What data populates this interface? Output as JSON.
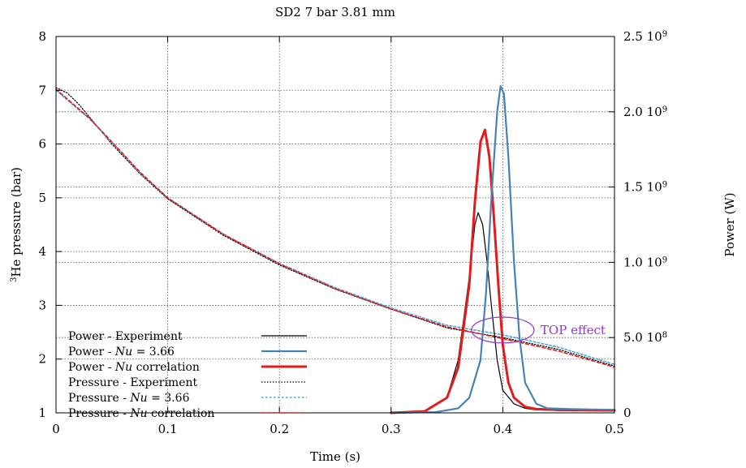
{
  "chart_data": {
    "type": "line",
    "title": "SD2 7 bar 3.81 mm",
    "xlabel": "Time (s)",
    "ylabel_left": {
      "sup": "3",
      "rest": "He pressure (bar)"
    },
    "ylabel_right": "Power (W)",
    "xlim": [
      0,
      0.5
    ],
    "ylim_left": [
      1,
      8
    ],
    "ylim_right": [
      0,
      2500000000
    ],
    "x_ticks": [
      {
        "v": 0,
        "label": "0"
      },
      {
        "v": 0.1,
        "label": "0.1"
      },
      {
        "v": 0.2,
        "label": "0.2"
      },
      {
        "v": 0.3,
        "label": "0.3"
      },
      {
        "v": 0.4,
        "label": "0.4"
      },
      {
        "v": 0.5,
        "label": "0.5"
      }
    ],
    "y_ticks_left": [
      {
        "v": 1,
        "label": "1"
      },
      {
        "v": 2,
        "label": "2"
      },
      {
        "v": 3,
        "label": "3"
      },
      {
        "v": 4,
        "label": "4"
      },
      {
        "v": 5,
        "label": "5"
      },
      {
        "v": 6,
        "label": "6"
      },
      {
        "v": 7,
        "label": "7"
      },
      {
        "v": 8,
        "label": "8"
      }
    ],
    "y_ticks_right": [
      {
        "v": 0,
        "mant": "0",
        "exp": ""
      },
      {
        "v": 500000000,
        "mant": "5.0 10",
        "exp": "8"
      },
      {
        "v": 1000000000,
        "mant": "1.0 10",
        "exp": "9"
      },
      {
        "v": 1500000000,
        "mant": "1.5 10",
        "exp": "9"
      },
      {
        "v": 2000000000,
        "mant": "2.0 10",
        "exp": "9"
      },
      {
        "v": 2500000000,
        "mant": "2.5 10",
        "exp": "9"
      }
    ],
    "grid": true,
    "legend_position": "bottom-left",
    "series": [
      {
        "name": "Power - Experiment",
        "legend_prefix": "Power - Experiment",
        "legend_italic": "",
        "legend_suffix": "",
        "axis": "right",
        "color": "#000000",
        "width": 1.2,
        "dash": "",
        "x": [
          0.3,
          0.33,
          0.35,
          0.36,
          0.37,
          0.375,
          0.378,
          0.382,
          0.386,
          0.39,
          0.395,
          0.4,
          0.41,
          0.42,
          0.43,
          0.45,
          0.5
        ],
        "y": [
          0,
          10000000,
          100000000,
          350000000,
          900000000,
          1250000000,
          1330000000,
          1250000000,
          1000000000,
          700000000,
          350000000,
          150000000,
          60000000,
          30000000,
          20000000,
          15000000,
          12000000
        ]
      },
      {
        "name": "Power - Nu = 3.66",
        "legend_prefix": "Power - ",
        "legend_italic": "Nu",
        "legend_suffix": " = 3.66",
        "axis": "right",
        "color": "#4682b4",
        "width": 2.2,
        "dash": "",
        "x": [
          0.3,
          0.34,
          0.36,
          0.37,
          0.38,
          0.385,
          0.39,
          0.395,
          0.398,
          0.401,
          0.405,
          0.41,
          0.415,
          0.42,
          0.43,
          0.44,
          0.46,
          0.5
        ],
        "y": [
          0,
          5000000,
          30000000,
          100000000,
          350000000,
          800000000,
          1450000000,
          2000000000,
          2170000000,
          2120000000,
          1700000000,
          1000000000,
          500000000,
          200000000,
          60000000,
          30000000,
          25000000,
          20000000
        ]
      },
      {
        "name": "Power - Nu correlation",
        "legend_prefix": "Power - ",
        "legend_italic": "Nu",
        "legend_suffix": " correlation",
        "axis": "right",
        "color": "#e41a1c",
        "width": 3.0,
        "dash": "",
        "x": [
          0.3,
          0.33,
          0.35,
          0.36,
          0.37,
          0.375,
          0.38,
          0.384,
          0.388,
          0.392,
          0.396,
          0.4,
          0.405,
          0.41,
          0.42,
          0.43,
          0.45,
          0.5
        ],
        "y": [
          0,
          10000000,
          100000000,
          300000000,
          850000000,
          1400000000,
          1800000000,
          1880000000,
          1700000000,
          1300000000,
          850000000,
          450000000,
          200000000,
          100000000,
          40000000,
          25000000,
          20000000,
          18000000
        ]
      },
      {
        "name": "Pressure - Experiment",
        "legend_prefix": "Pressure - Experiment",
        "legend_italic": "",
        "legend_suffix": "",
        "axis": "left",
        "color": "#000000",
        "width": 1.2,
        "dash": "1.5 2",
        "x": [
          0,
          0.01,
          0.02,
          0.03,
          0.05,
          0.075,
          0.1,
          0.15,
          0.2,
          0.25,
          0.3,
          0.35,
          0.4,
          0.45,
          0.5
        ],
        "y": [
          7.05,
          6.95,
          6.75,
          6.5,
          6.0,
          5.45,
          4.98,
          4.3,
          3.75,
          3.3,
          2.93,
          2.58,
          2.4,
          2.18,
          1.87
        ]
      },
      {
        "name": "Pressure - Nu = 3.66",
        "legend_prefix": "Pressure - ",
        "legend_italic": "Nu",
        "legend_suffix": " = 3.66",
        "axis": "left",
        "color": "#4da6e0",
        "width": 1.6,
        "dash": "2.5 2.5",
        "x": [
          0,
          0.01,
          0.02,
          0.03,
          0.05,
          0.075,
          0.1,
          0.15,
          0.2,
          0.25,
          0.3,
          0.35,
          0.4,
          0.45,
          0.5
        ],
        "y": [
          7.0,
          6.82,
          6.64,
          6.47,
          6.03,
          5.47,
          5.0,
          4.32,
          3.78,
          3.33,
          2.95,
          2.63,
          2.45,
          2.22,
          1.9
        ]
      },
      {
        "name": "Pressure - Nu correlation",
        "legend_prefix": "Pressure - ",
        "legend_italic": "Nu",
        "legend_suffix": " correlation",
        "axis": "left",
        "color": "#e41a1c",
        "width": 1.6,
        "dash": "4 3",
        "x": [
          0,
          0.01,
          0.02,
          0.03,
          0.05,
          0.075,
          0.1,
          0.15,
          0.2,
          0.25,
          0.3,
          0.35,
          0.4,
          0.45,
          0.5
        ],
        "y": [
          7.02,
          6.84,
          6.66,
          6.48,
          6.04,
          5.48,
          5.0,
          4.32,
          3.77,
          3.31,
          2.93,
          2.6,
          2.38,
          2.15,
          1.85
        ]
      }
    ],
    "annotation": {
      "label": "TOP effect",
      "color": "#9933cc",
      "center_x": 0.4,
      "center_y": 2.54,
      "rx_x": 0.028,
      "ry_y": 0.24
    }
  }
}
